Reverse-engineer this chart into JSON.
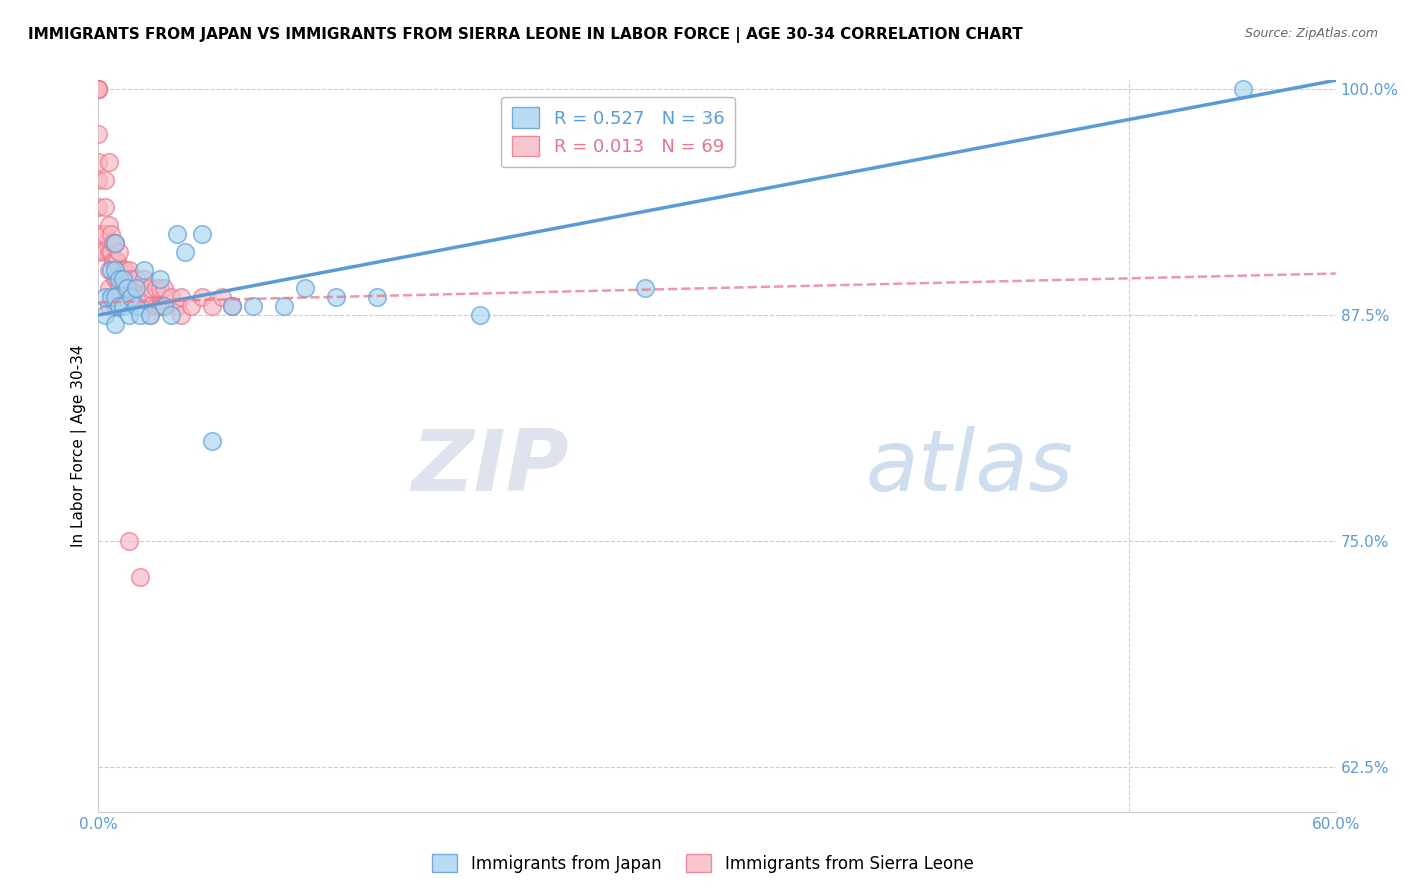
{
  "title": "IMMIGRANTS FROM JAPAN VS IMMIGRANTS FROM SIERRA LEONE IN LABOR FORCE | AGE 30-34 CORRELATION CHART",
  "source": "Source: ZipAtlas.com",
  "ylabel": "In Labor Force | Age 30-34",
  "xlim": [
    0.0,
    0.6
  ],
  "ylim": [
    0.6,
    1.005
  ],
  "xticks": [
    0.0,
    0.1,
    0.2,
    0.3,
    0.4,
    0.5,
    0.6
  ],
  "xticklabels": [
    "0.0%",
    "",
    "",
    "",
    "",
    "",
    "60.0%"
  ],
  "yticks": [
    0.625,
    0.75,
    0.875,
    1.0
  ],
  "yticklabels": [
    "62.5%",
    "75.0%",
    "87.5%",
    "100.0%"
  ],
  "japan_color": "#a8d4f0",
  "japan_edge": "#5b9bd5",
  "sierra_color": "#f7b8c2",
  "sierra_edge": "#e8748a",
  "japan_R": 0.527,
  "japan_N": 36,
  "sierra_R": 0.013,
  "sierra_N": 69,
  "legend_japan_label": "Immigrants from Japan",
  "legend_sierra_label": "Immigrants from Sierra Leone",
  "watermark_zip": "ZIP",
  "watermark_atlas": "atlas",
  "japan_scatter_x": [
    0.003,
    0.003,
    0.006,
    0.006,
    0.008,
    0.008,
    0.008,
    0.008,
    0.01,
    0.01,
    0.012,
    0.012,
    0.014,
    0.015,
    0.016,
    0.018,
    0.018,
    0.02,
    0.022,
    0.025,
    0.03,
    0.032,
    0.035,
    0.038,
    0.042,
    0.05,
    0.055,
    0.065,
    0.075,
    0.09,
    0.1,
    0.115,
    0.135,
    0.185,
    0.265,
    0.555
  ],
  "japan_scatter_y": [
    0.885,
    0.875,
    0.9,
    0.885,
    0.915,
    0.9,
    0.885,
    0.87,
    0.895,
    0.88,
    0.895,
    0.88,
    0.89,
    0.875,
    0.885,
    0.89,
    0.88,
    0.875,
    0.9,
    0.875,
    0.895,
    0.88,
    0.875,
    0.92,
    0.91,
    0.92,
    0.805,
    0.88,
    0.88,
    0.88,
    0.89,
    0.885,
    0.885,
    0.875,
    0.89,
    1.0
  ],
  "sierra_scatter_x": [
    0.0,
    0.0,
    0.0,
    0.0,
    0.0,
    0.0,
    0.0,
    0.0,
    0.0,
    0.0,
    0.003,
    0.003,
    0.003,
    0.003,
    0.005,
    0.005,
    0.005,
    0.005,
    0.005,
    0.006,
    0.006,
    0.007,
    0.007,
    0.008,
    0.008,
    0.008,
    0.008,
    0.009,
    0.009,
    0.01,
    0.01,
    0.01,
    0.01,
    0.012,
    0.012,
    0.013,
    0.013,
    0.015,
    0.015,
    0.016,
    0.016,
    0.018,
    0.018,
    0.02,
    0.022,
    0.022,
    0.025,
    0.025,
    0.025,
    0.028,
    0.028,
    0.03,
    0.03,
    0.032,
    0.032,
    0.035,
    0.038,
    0.04,
    0.04,
    0.045,
    0.05,
    0.055,
    0.06,
    0.065,
    0.005,
    0.008,
    0.01,
    0.015,
    0.02
  ],
  "sierra_scatter_y": [
    1.0,
    1.0,
    1.0,
    1.0,
    0.975,
    0.96,
    0.95,
    0.935,
    0.92,
    0.91,
    0.95,
    0.935,
    0.92,
    0.91,
    0.925,
    0.91,
    0.9,
    0.89,
    0.88,
    0.92,
    0.91,
    0.915,
    0.905,
    0.915,
    0.905,
    0.895,
    0.885,
    0.905,
    0.895,
    0.91,
    0.9,
    0.89,
    0.88,
    0.9,
    0.89,
    0.9,
    0.89,
    0.9,
    0.89,
    0.895,
    0.885,
    0.895,
    0.885,
    0.89,
    0.895,
    0.885,
    0.89,
    0.88,
    0.875,
    0.89,
    0.88,
    0.89,
    0.88,
    0.89,
    0.88,
    0.885,
    0.88,
    0.885,
    0.875,
    0.88,
    0.885,
    0.88,
    0.885,
    0.88,
    0.96,
    0.88,
    0.88,
    0.75,
    0.73
  ],
  "japan_trendline_x": [
    0.0,
    0.6
  ],
  "japan_trendline_y": [
    0.875,
    1.005
  ],
  "sierra_trendline_x": [
    0.0,
    0.6
  ],
  "sierra_trendline_y": [
    0.882,
    0.898
  ],
  "grid_color": "#cccccc",
  "title_fontsize": 11,
  "tick_color": "#5b9bd5",
  "legend_r_japan_color": "#5b9bd5",
  "legend_n_japan_color": "#5b9bd5",
  "legend_r_sierra_color": "#e8748a",
  "legend_n_sierra_color": "#e8748a"
}
